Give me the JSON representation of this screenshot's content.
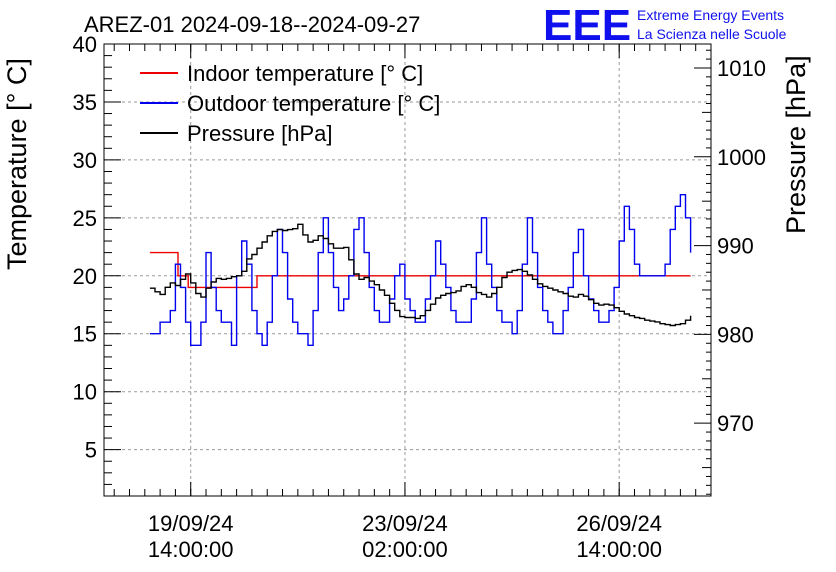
{
  "chart_data": {
    "type": "line",
    "title": "AREZ-01 2024-09-18--2024-09-27",
    "ylabel": "Temperature [° C]",
    "y2label": "Pressure [hPa]",
    "ylim": [
      1,
      40
    ],
    "y2lim": [
      961.8,
      1012.7
    ],
    "y_ticks": [
      5,
      10,
      15,
      20,
      25,
      30,
      35,
      40
    ],
    "y2_ticks": [
      970,
      980,
      990,
      1000,
      1010
    ],
    "x_unit": "hours since 2024-09-18 00:00",
    "xlim": [
      4,
      242
    ],
    "x_ticks": [
      {
        "x": 38,
        "line1": "19/09/24",
        "line2": "14:00:00"
      },
      {
        "x": 122,
        "line1": "23/09/24",
        "line2": "02:00:00"
      },
      {
        "x": 206,
        "line1": "26/09/24",
        "line2": "14:00:00"
      }
    ],
    "logo": {
      "mark": "EEE",
      "line1": "Extreme Energy Events",
      "line2": "La Scienza nelle Scuole"
    },
    "series": [
      {
        "name": "Indoor temperature [° C]",
        "color": "#ee0000",
        "axis": "left",
        "x": [
          22,
          31,
          33,
          37,
          39,
          49,
          56,
          62,
          64,
          70,
          80,
          90,
          100,
          110,
          120,
          130,
          140,
          150,
          160,
          170,
          180,
          190,
          200,
          210,
          220,
          230,
          234
        ],
        "y": [
          22,
          22,
          20,
          19,
          19,
          19,
          19,
          19,
          20,
          20,
          20,
          20,
          20,
          20,
          20,
          20,
          20,
          20,
          20,
          20,
          20,
          20,
          20,
          20,
          20,
          20,
          20
        ]
      },
      {
        "name": "Outdoor temperature [° C]",
        "color": "#0000ee",
        "axis": "left",
        "x": [
          22,
          25,
          26,
          28,
          30,
          32,
          34,
          36,
          38,
          40,
          42,
          44,
          46,
          48,
          50,
          52,
          54,
          56,
          58,
          60,
          62,
          64,
          66,
          68,
          70,
          72,
          74,
          76,
          78,
          80,
          82,
          84,
          86,
          88,
          90,
          92,
          94,
          96,
          98,
          100,
          102,
          104,
          106,
          108,
          110,
          112,
          114,
          116,
          118,
          120,
          122,
          124,
          126,
          128,
          130,
          132,
          134,
          136,
          138,
          140,
          142,
          144,
          146,
          148,
          150,
          152,
          154,
          156,
          158,
          160,
          162,
          164,
          166,
          168,
          170,
          172,
          174,
          176,
          178,
          180,
          182,
          184,
          186,
          188,
          190,
          192,
          194,
          196,
          198,
          200,
          202,
          204,
          206,
          208,
          210,
          212,
          214,
          216,
          218,
          220,
          222,
          224,
          226,
          228,
          230,
          232,
          234
        ],
        "y": [
          15,
          15,
          16,
          16,
          17,
          21,
          19,
          16,
          14,
          14,
          16,
          22,
          19,
          17,
          16,
          16,
          14,
          20,
          23,
          21,
          17,
          15,
          14,
          16,
          20,
          24,
          22,
          18,
          16,
          15,
          15,
          14,
          17,
          22,
          25,
          22,
          19,
          17,
          18,
          20,
          24,
          25,
          22,
          19,
          17,
          16,
          16,
          18,
          20,
          21,
          18,
          17,
          16,
          16,
          18,
          20,
          23,
          21,
          19,
          17,
          16,
          16,
          16,
          18,
          22,
          25,
          21,
          19,
          17,
          16,
          16,
          15,
          17,
          21,
          25,
          22,
          19,
          17,
          16,
          15,
          15,
          17,
          19,
          22,
          24,
          20,
          18,
          17,
          16,
          16,
          17,
          19,
          23,
          26,
          24,
          21,
          20,
          20,
          20,
          20,
          20,
          21,
          24,
          26,
          27,
          25,
          22
        ]
      },
      {
        "name": "Pressure [hPa]",
        "color": "#000000",
        "axis": "right",
        "x": [
          22,
          24,
          26,
          28,
          30,
          32,
          34,
          36,
          38,
          40,
          42,
          44,
          46,
          48,
          50,
          52,
          54,
          56,
          58,
          60,
          62,
          64,
          66,
          68,
          70,
          72,
          74,
          76,
          78,
          80,
          82,
          84,
          86,
          88,
          90,
          92,
          94,
          96,
          98,
          100,
          102,
          104,
          106,
          108,
          110,
          112,
          114,
          116,
          118,
          120,
          122,
          124,
          126,
          128,
          130,
          132,
          134,
          136,
          138,
          140,
          142,
          144,
          146,
          148,
          150,
          152,
          154,
          156,
          158,
          160,
          162,
          164,
          166,
          168,
          170,
          172,
          174,
          176,
          178,
          180,
          182,
          184,
          186,
          188,
          190,
          192,
          194,
          196,
          198,
          200,
          202,
          204,
          206,
          208,
          210,
          212,
          214,
          216,
          218,
          220,
          222,
          224,
          226,
          228,
          230,
          232,
          234
        ],
        "y": [
          985.2,
          984.8,
          984.5,
          985.3,
          985.8,
          985.5,
          986.2,
          986.8,
          985.8,
          984.6,
          984.2,
          985.2,
          985.9,
          986.3,
          986.2,
          986.3,
          986.5,
          986.6,
          987.1,
          988.5,
          989.0,
          989.7,
          990.4,
          991.1,
          991.6,
          991.8,
          991.7,
          991.8,
          991.9,
          992.4,
          991.2,
          990.4,
          990.6,
          991.1,
          990.8,
          990.2,
          989.7,
          989.7,
          989.8,
          988.4,
          986.8,
          986.2,
          986.4,
          986.0,
          985.6,
          985.0,
          984.4,
          983.5,
          982.7,
          982.0,
          981.9,
          981.9,
          981.8,
          982.1,
          982.7,
          983.4,
          984.1,
          984.4,
          984.6,
          984.7,
          984.9,
          985.4,
          985.6,
          985.3,
          984.7,
          984.5,
          984.2,
          984.6,
          985.3,
          986.4,
          987.0,
          987.2,
          987.3,
          987.1,
          986.7,
          986.2,
          985.7,
          985.4,
          985.2,
          985.0,
          984.8,
          984.6,
          984.3,
          984.2,
          984.5,
          984.3,
          983.9,
          983.5,
          983.3,
          983.4,
          983.3,
          983.0,
          982.6,
          982.3,
          982.1,
          981.9,
          981.8,
          981.6,
          981.5,
          981.4,
          981.2,
          981.1,
          981.0,
          981.1,
          981.2,
          981.6,
          982.1
        ]
      }
    ]
  }
}
